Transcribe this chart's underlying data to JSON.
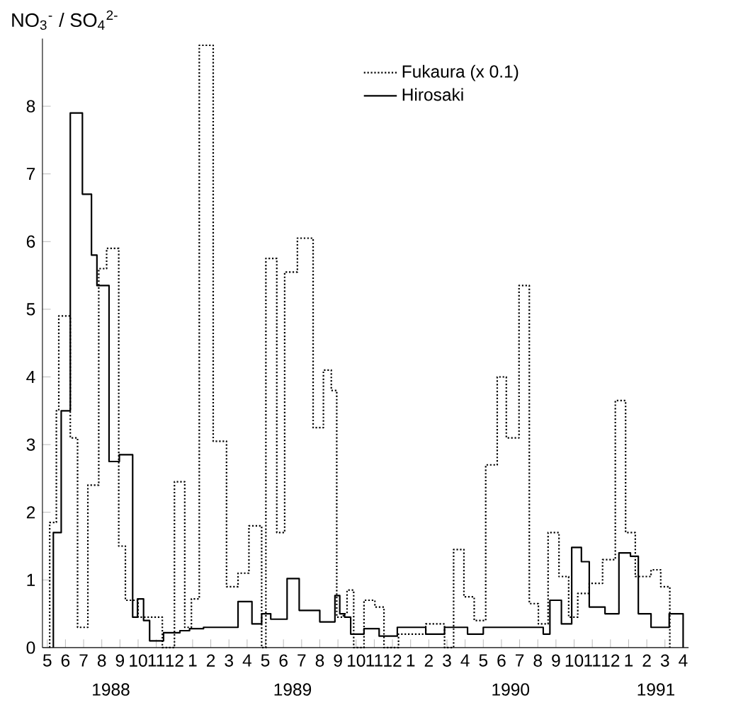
{
  "chart_data": {
    "type": "step",
    "ylabel": "NO$_{3}$$^{-}$ / SO$_{4}$$^{2-}$",
    "xlim": [
      "1988-05-08",
      "1991-04-25"
    ],
    "ylim": [
      0,
      9
    ],
    "xticks": [
      {
        "value": "1988-05-16",
        "label": "5"
      },
      {
        "value": "1988-06-16",
        "label": "6"
      },
      {
        "value": "1988-07-16",
        "label": "7"
      },
      {
        "value": "1988-08-16",
        "label": "8"
      },
      {
        "value": "1988-09-16",
        "label": "9"
      },
      {
        "value": "1988-10-16",
        "label": "10"
      },
      {
        "value": "1988-11-16",
        "label": "11"
      },
      {
        "value": "1988-12-16",
        "label": "12"
      },
      {
        "value": "1989-01-16",
        "label": "1"
      },
      {
        "value": "1989-02-16",
        "label": "2"
      },
      {
        "value": "1989-03-16",
        "label": "3"
      },
      {
        "value": "1989-04-16",
        "label": "4"
      },
      {
        "value": "1989-05-16",
        "label": "5"
      },
      {
        "value": "1989-06-16",
        "label": "6"
      },
      {
        "value": "1989-07-16",
        "label": "7"
      },
      {
        "value": "1989-08-16",
        "label": "8"
      },
      {
        "value": "1989-09-16",
        "label": "9"
      },
      {
        "value": "1989-10-16",
        "label": "10"
      },
      {
        "value": "1989-11-16",
        "label": "11"
      },
      {
        "value": "1989-12-16",
        "label": "12"
      },
      {
        "value": "1990-01-16",
        "label": "1"
      },
      {
        "value": "1990-02-16",
        "label": "2"
      },
      {
        "value": "1990-03-16",
        "label": "3"
      },
      {
        "value": "1990-04-16",
        "label": "4"
      },
      {
        "value": "1990-05-16",
        "label": "5"
      },
      {
        "value": "1990-06-16",
        "label": "6"
      },
      {
        "value": "1990-07-16",
        "label": "7"
      },
      {
        "value": "1990-08-16",
        "label": "8"
      },
      {
        "value": "1990-09-16",
        "label": "9"
      },
      {
        "value": "1990-10-16",
        "label": "10"
      },
      {
        "value": "1990-11-16",
        "label": "11"
      },
      {
        "value": "1990-12-16",
        "label": "12"
      },
      {
        "value": "1991-01-16",
        "label": "1"
      },
      {
        "value": "1991-02-16",
        "label": "2"
      },
      {
        "value": "1991-03-16",
        "label": "3"
      },
      {
        "value": "1991-04-16",
        "label": "4"
      }
    ],
    "yticks": [
      0,
      1,
      2,
      3,
      4,
      5,
      6,
      7,
      8
    ],
    "legend": "top",
    "annotations": [
      "1988",
      "1989",
      "1990",
      "1991"
    ],
    "series": [
      {
        "name": "Fukaura (x 0.1)",
        "color": "#000000",
        "line_style": "dotted",
        "x": [
          "1988-05-20",
          "1988-05-20",
          "1988-06-01",
          "1988-06-05",
          "1988-06-24",
          "1988-07-06",
          "1988-07-23",
          "1988-08-11",
          "1988-08-24",
          "1988-09-14",
          "1988-09-25",
          "1988-10-16",
          "1988-11-26",
          "1988-12-16",
          "1989-01-03",
          "1989-01-14",
          "1989-01-27",
          "1989-02-20",
          "1989-03-12",
          "1989-04-01",
          "1989-04-19",
          "1989-05-10",
          "1989-05-17",
          "1989-06-05",
          "1989-06-18",
          "1989-07-09",
          "1989-08-05",
          "1989-08-22",
          "1989-09-05",
          "1989-09-14",
          "1989-09-25",
          "1989-10-01",
          "1989-10-12",
          "1989-10-29",
          "1989-11-17",
          "1989-12-02",
          "1989-12-26",
          "1990-02-11",
          "1990-03-12",
          "1990-03-27",
          "1990-04-14",
          "1990-05-01",
          "1990-05-20",
          "1990-06-09",
          "1990-06-24",
          "1990-07-15",
          "1990-08-02",
          "1990-08-17",
          "1990-09-03",
          "1990-09-21",
          "1990-10-07",
          "1990-10-22",
          "1990-11-11",
          "1990-12-03",
          "1990-12-24",
          "1991-01-11",
          "1991-01-27",
          "1991-02-23",
          "1991-03-09",
          "1991-03-24"
        ],
        "values": [
          0,
          1.85,
          3.5,
          4.9,
          3.1,
          0.3,
          2.4,
          5.6,
          5.9,
          1.5,
          0.7,
          0.45,
          0,
          2.45,
          0.3,
          0.72,
          8.9,
          3.05,
          0.9,
          1.1,
          1.8,
          0,
          5.75,
          1.7,
          5.55,
          6.05,
          3.25,
          4.1,
          3.8,
          0.45,
          0.5,
          0.85,
          0,
          0.7,
          0.6,
          0,
          0.2,
          0.35,
          0,
          1.45,
          0.75,
          0.4,
          2.7,
          4.0,
          3.1,
          5.35,
          0.65,
          0.35,
          1.7,
          1.05,
          0.45,
          0.8,
          0.95,
          1.3,
          3.65,
          1.7,
          1.05,
          1.15,
          0.9,
          0
        ]
      },
      {
        "name": "Hirosaki",
        "color": "#000000",
        "line_style": "solid",
        "x": [
          "1988-05-26",
          "1988-05-26",
          "1988-06-09",
          "1988-06-24",
          "1988-07-14",
          "1988-07-29",
          "1988-08-08",
          "1988-08-28",
          "1988-09-15",
          "1988-10-07",
          "1988-10-15",
          "1988-10-25",
          "1988-11-05",
          "1988-11-28",
          "1988-12-25",
          "1989-01-11",
          "1989-02-04",
          "1989-04-01",
          "1989-04-24",
          "1989-05-10",
          "1989-05-25",
          "1989-06-22",
          "1989-07-12",
          "1989-08-16",
          "1989-09-11",
          "1989-09-19",
          "1989-09-27",
          "1989-10-07",
          "1989-10-29",
          "1989-11-24",
          "1989-12-24",
          "1990-02-11",
          "1990-03-12",
          "1990-04-20",
          "1990-05-16",
          "1990-08-25",
          "1990-09-06",
          "1990-09-25",
          "1990-10-12",
          "1990-10-28",
          "1990-11-11",
          "1990-12-07",
          "1990-12-30",
          "1991-01-19",
          "1991-02-02",
          "1991-02-23",
          "1991-03-23",
          "1991-04-16"
        ],
        "values": [
          0,
          1.7,
          3.5,
          7.9,
          6.7,
          5.8,
          5.35,
          2.75,
          2.85,
          0.45,
          0.72,
          0.4,
          0.1,
          0.22,
          0.25,
          0.28,
          0.3,
          0.68,
          0.35,
          0.5,
          0.42,
          1.02,
          0.55,
          0.38,
          0.77,
          0.5,
          0.45,
          0.2,
          0.28,
          0.17,
          0.3,
          0.2,
          0.3,
          0.2,
          0.3,
          0.2,
          0.7,
          0.35,
          1.48,
          1.27,
          0.6,
          0.5,
          1.4,
          1.35,
          0.5,
          0.3,
          0.5,
          0
        ]
      }
    ]
  }
}
